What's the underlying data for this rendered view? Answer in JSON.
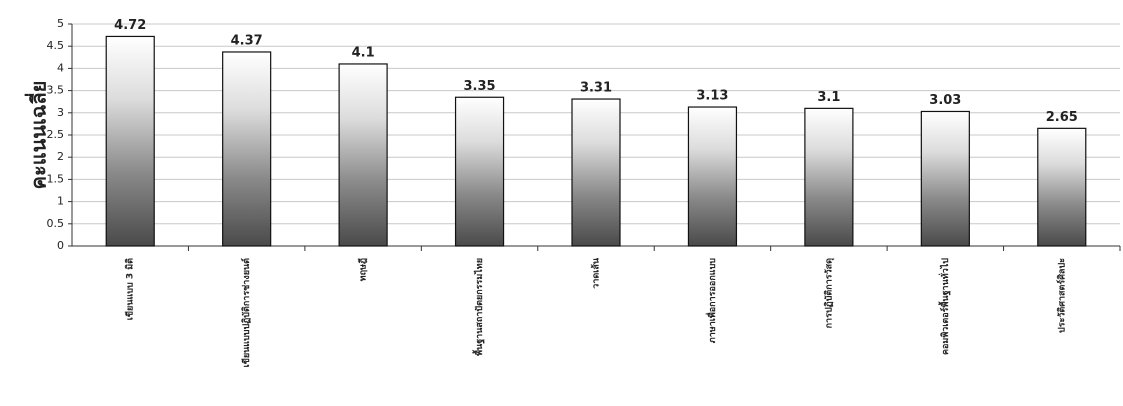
{
  "chart_data": {
    "type": "bar",
    "y_label": "คะแนนเฉลี่ย",
    "categories": [
      "เขียนแบบ 3 มิติ",
      "เขียนแบบปฏิบัติการช่างยนต์",
      "ทฤษฎี",
      "พื้นฐานสถาปัตยกรรมไทย",
      "วาดเส้น",
      "ภาษาเพื่อการออกแบบ",
      "การปฏิบัติการวัสดุ",
      "คอมพิวเตอร์พื้นฐานทั่วไป",
      "ประวัติศาสตร์ศิลปะ"
    ],
    "values": [
      4.72,
      4.37,
      4.1,
      3.35,
      3.31,
      3.13,
      3.1,
      3.03,
      2.65
    ],
    "ylim": [
      0,
      5
    ],
    "yticks": [
      0,
      0.5,
      1,
      1.5,
      2,
      2.5,
      3,
      3.5,
      4,
      4.5,
      5
    ],
    "grid": true
  }
}
